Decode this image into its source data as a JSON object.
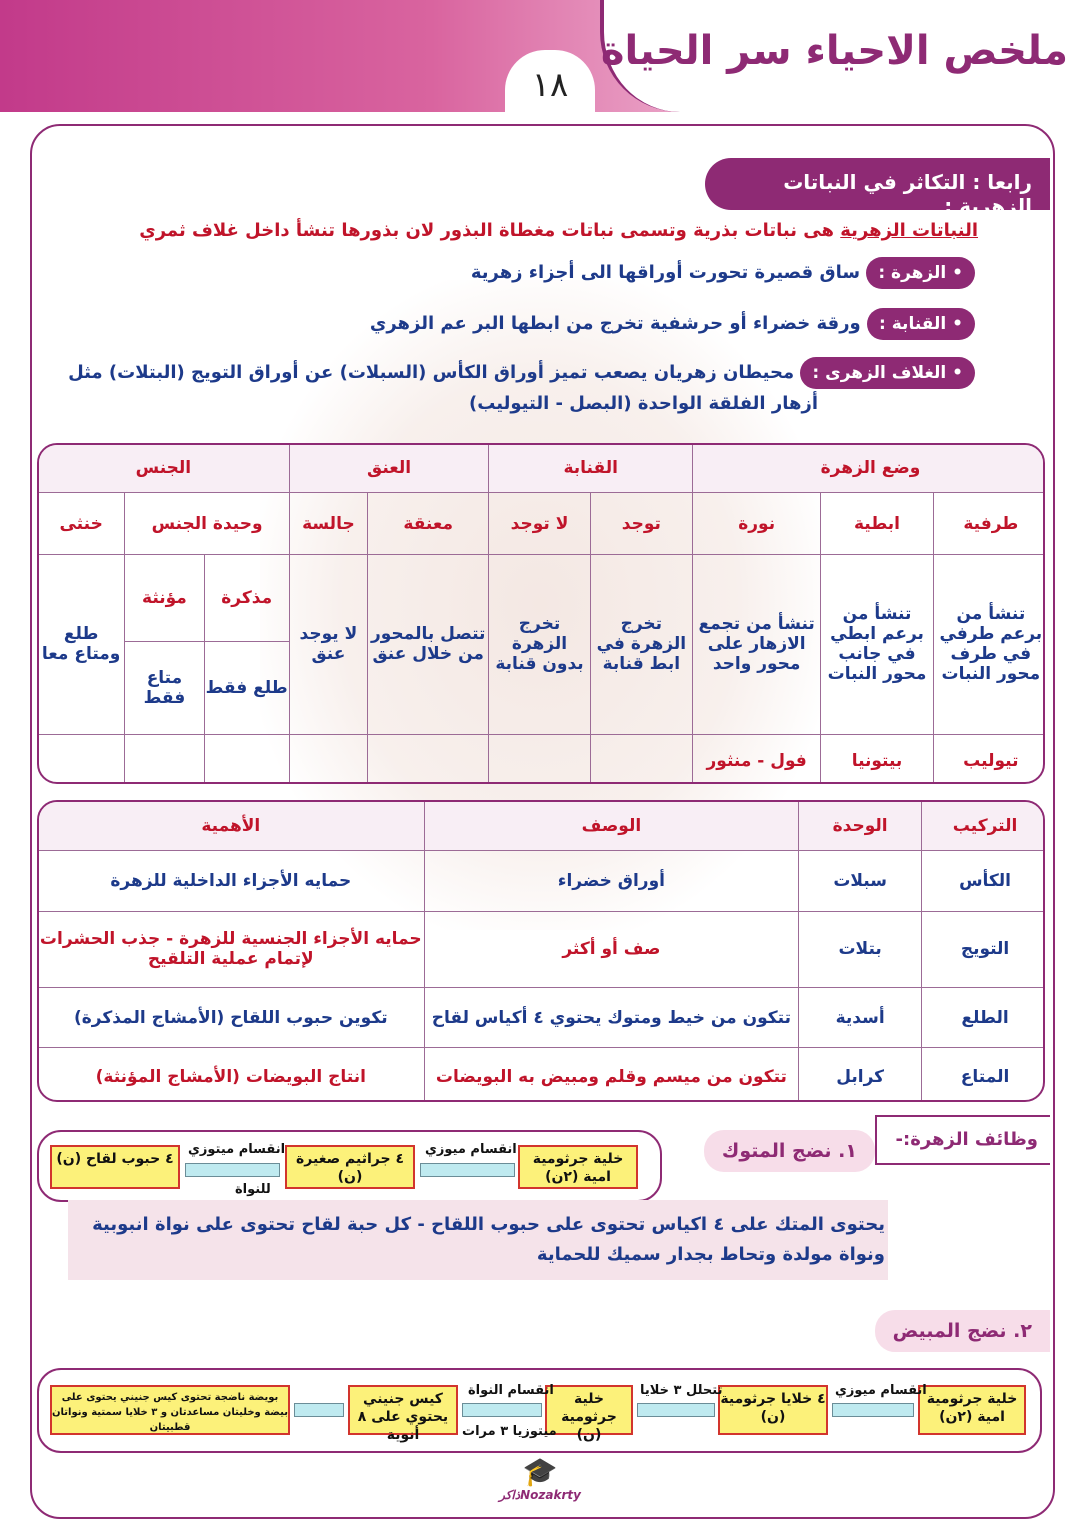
{
  "header": {
    "title": "ملخص الاحياء سر الحياة",
    "page_number": "١٨"
  },
  "section": {
    "title": "رابعا : التكاثر في النباتات الزهرية :"
  },
  "intro": {
    "term": "النباتات الزهرية",
    "text": "هى نباتات بذرية وتسمى نباتات مغطاة البذور لان بذورها تنشأ داخل غلاف ثمري"
  },
  "definitions": [
    {
      "term": "• الزهرة :",
      "text": "ساق قصيرة تحورت أوراقها الى أجزاء زهرية"
    },
    {
      "term": "• القنابة :",
      "text": "ورقة خضراء أو حرشفية تخرج من ابطها البر عم الزهري"
    },
    {
      "term": "• الغلاف الزهرى :",
      "text": "محيطان زهريان يصعب تميز أوراق الكأس (السبلات) عن أوراق التويج (البتلات) مثل",
      "text2": "أزهار الفلقة الواحدة (البصل - التيوليب)"
    }
  ],
  "table1": {
    "groups": [
      "وضع الزهرة",
      "القنابة",
      "العنق",
      "الجنس"
    ],
    "subheaders": [
      "طرفية",
      "ابطية",
      "نورة",
      "توجد",
      "لا توجد",
      "معنقة",
      "جالسة",
      "وحيدة الجنس",
      "خنثى"
    ],
    "cells": [
      "تنشأ من برعم طرفي في طرف محور النبات",
      "تنشأ من برعم ابطي في جانب محور النبات",
      "تنشأ من تجمع الازهار على محور واحد",
      "تخرج الزهرة في ابط قنابة",
      "تخرج الزهرة بدون قنابة",
      "تتصل بالمحور من خلال عنق",
      "لا يوجد عنق",
      "مذكرة",
      "مؤنثة",
      "طلع فقط",
      "متاع فقط",
      "طلع ومتاع معا"
    ],
    "examples": [
      "تيوليب",
      "بيتونيا",
      "فول - منثور"
    ]
  },
  "table2": {
    "headers": [
      "التركيب",
      "الوحدة",
      "الوصف",
      "الأهمية"
    ],
    "rows": [
      [
        "الكأس",
        "سبلات",
        "أوراق خضراء",
        "حمايه الأجزاء الداخلية للزهرة"
      ],
      [
        "التويج",
        "بتلات",
        "صف أو أكثر",
        "حمايه الأجزاء الجنسية للزهرة - جذب الحشرات لإتمام عملية التلقيح"
      ],
      [
        "الطلع",
        "أسدية",
        "تتكون من خيط ومتوك يحتوي ٤ أكياس لقاح",
        "تكوين حبوب اللقاح (الأمشاج المذكرة)"
      ],
      [
        "المتاع",
        "كرابل",
        "تتكون من ميسم وقلم ومبيض به البويضات",
        "انتاج البويضات (الأمشاج المؤنثة)"
      ]
    ]
  },
  "functions": {
    "title": "وظائف الزهرة:-",
    "step1": "١. نضج المتوك",
    "step2": "٢. نضج المبيض"
  },
  "flow1": {
    "boxes": [
      "خلية جرثومية امية (٢ن)",
      "٤ جراثيم صغيرة (ن)",
      "٤ حبوب لقاح (ن)"
    ],
    "labels": [
      "انقسام ميوزي",
      "انقسام ميتوزي",
      "للنواة"
    ]
  },
  "anther_note": {
    "line1": "يحتوى المتك على ٤ اكياس تحتوى على حبوب اللقاح - كل حبة لقاح تحتوى على نواة انبوبية",
    "line2": "ونواة مولدة وتحاط بجدار سميك للحماية"
  },
  "flow2": {
    "boxes": [
      "خلية جرثومية امية (٢ن)",
      "٤ خلايا جرثومية (ن)",
      "خلية جرثومية (ن)",
      "كيس جنيني يحتوي على ٨ أنوية",
      "بويضة ناضجة تحتوى كيس جنيني يحتوى على بيضة وخليتان مساعدتان و ٣ خلايا سمتية ونواتان قطبيتان"
    ],
    "labels": [
      "انقسام ميوزي",
      "تتحلل ٣ خلايا",
      "انقسام النواة",
      "ميتوزيا ٣ مرات"
    ]
  },
  "logo": {
    "text": "Nozakrtyذاكر"
  },
  "colors": {
    "accent": "#8e2a74",
    "text_blue": "#1d3a8a",
    "text_red": "#c0142a",
    "box_yellow": "#fcf17a"
  }
}
